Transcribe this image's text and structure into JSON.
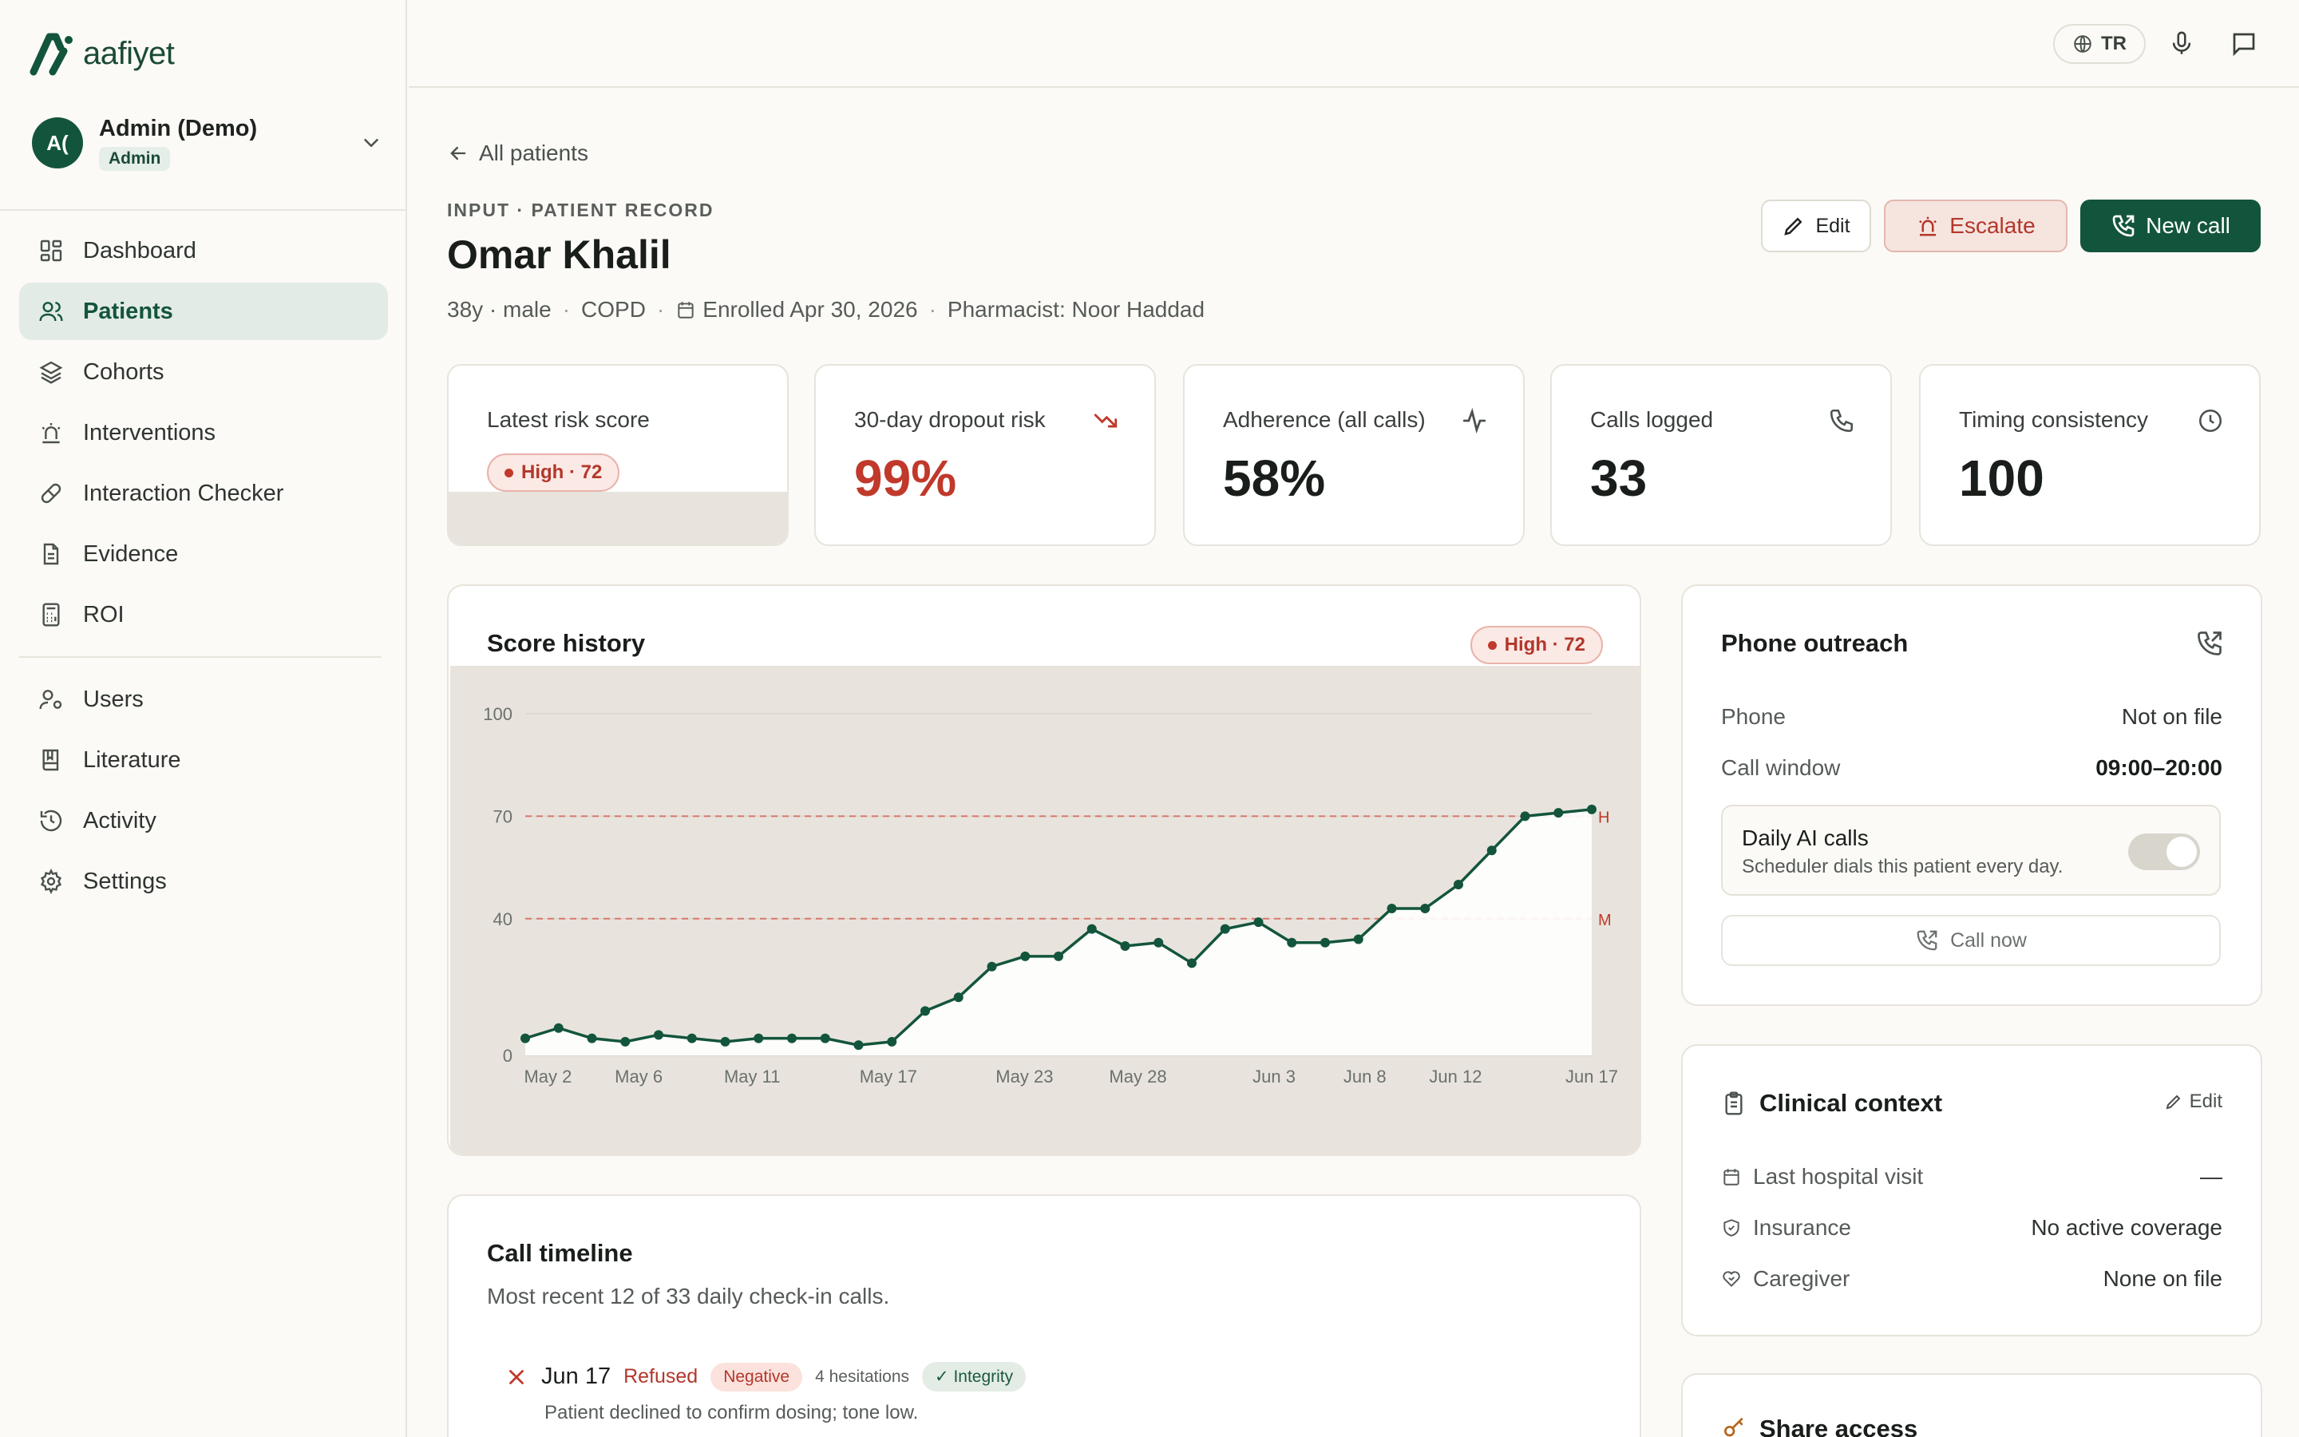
{
  "brand": {
    "name": "aafiyet"
  },
  "user": {
    "initials": "A(",
    "name": "Admin (Demo)",
    "role": "Admin"
  },
  "nav": {
    "primary": [
      {
        "label": "Dashboard",
        "icon": "grid-icon"
      },
      {
        "label": "Patients",
        "icon": "users-icon",
        "active": true
      },
      {
        "label": "Cohorts",
        "icon": "layers-icon"
      },
      {
        "label": "Interventions",
        "icon": "siren-icon"
      },
      {
        "label": "Interaction Checker",
        "icon": "pill-icon"
      },
      {
        "label": "Evidence",
        "icon": "document-icon"
      },
      {
        "label": "ROI",
        "icon": "calculator-icon"
      }
    ],
    "secondary": [
      {
        "label": "Users",
        "icon": "user-cog-icon"
      },
      {
        "label": "Literature",
        "icon": "book-icon"
      },
      {
        "label": "Activity",
        "icon": "history-icon"
      },
      {
        "label": "Settings",
        "icon": "gear-icon"
      }
    ]
  },
  "topbar": {
    "language": "TR"
  },
  "header": {
    "back_label": "All patients",
    "eyebrow": "INPUT · PATIENT RECORD",
    "patient_name": "Omar Khalil",
    "age_sex": "38y · male",
    "condition": "COPD",
    "enrolled": "Enrolled Apr 30, 2026",
    "pharmacist": "Pharmacist: Noor Haddad"
  },
  "actions": {
    "edit": "Edit",
    "escalate": "Escalate",
    "new_call": "New call"
  },
  "stats": {
    "risk": {
      "label": "Latest risk score",
      "badge": "High · 72"
    },
    "dropout": {
      "label": "30-day dropout risk",
      "value": "99%"
    },
    "adherence": {
      "label": "Adherence (all calls)",
      "value": "58%"
    },
    "calls": {
      "label": "Calls logged",
      "value": "33"
    },
    "timing": {
      "label": "Timing consistency",
      "value": "100"
    }
  },
  "score_history": {
    "title": "Score history",
    "badge": "High · 72"
  },
  "chart_data": {
    "type": "line",
    "title": "Score history",
    "ylim": [
      0,
      100
    ],
    "yticks": [
      "0",
      "40",
      "70",
      "100"
    ],
    "xtick_labels": [
      "May 2",
      "May 6",
      "May 11",
      "May 17",
      "May 23",
      "May 28",
      "Jun 3",
      "Jun 8",
      "Jun 12",
      "Jun 17"
    ],
    "xtick_days": [
      2,
      6,
      11,
      17,
      23,
      28,
      34,
      38,
      42,
      48
    ],
    "x_days": [
      1,
      2,
      3,
      4,
      5,
      6,
      7,
      8,
      9,
      10,
      11,
      12,
      13,
      14,
      15,
      16,
      17,
      18,
      19,
      20,
      21,
      22,
      23,
      24,
      25,
      26,
      27,
      28,
      29,
      30,
      31,
      32,
      33,
      34,
      35,
      36,
      37,
      38,
      39,
      40,
      41,
      42,
      43,
      44,
      45,
      46,
      47,
      48
    ],
    "values": [
      5,
      8,
      5,
      4,
      6,
      5,
      4,
      5,
      5,
      5,
      3,
      4,
      13,
      17,
      26,
      29,
      29,
      37,
      32,
      33,
      27,
      37,
      39,
      33,
      33,
      34,
      43,
      43,
      50,
      60,
      70,
      71,
      72
    ],
    "x": [
      1,
      2,
      3,
      4,
      5,
      6,
      7,
      8,
      9,
      10,
      11,
      12,
      13,
      14,
      15,
      16,
      17,
      18,
      19,
      20,
      21,
      22,
      23,
      24,
      25,
      26,
      27,
      28,
      29,
      30,
      31,
      32,
      33
    ],
    "thresholds": [
      {
        "value": 70,
        "label": "H"
      },
      {
        "value": 40,
        "label": "M"
      }
    ],
    "grid": true,
    "legend": "none"
  },
  "phone": {
    "title": "Phone outreach",
    "phone_label": "Phone",
    "phone_value": "Not on file",
    "window_label": "Call window",
    "window_value": "09:00–20:00",
    "daily_title": "Daily AI calls",
    "daily_sub": "Scheduler dials this patient every day.",
    "call_now": "Call now"
  },
  "clinical": {
    "title": "Clinical context",
    "edit": "Edit",
    "hospital_label": "Last hospital visit",
    "hospital_value": "—",
    "insurance_label": "Insurance",
    "insurance_value": "No active coverage",
    "caregiver_label": "Caregiver",
    "caregiver_value": "None on file"
  },
  "share": {
    "title": "Share access"
  },
  "timeline": {
    "title": "Call timeline",
    "subtitle": "Most recent 12 of 33 daily check-in calls.",
    "items": [
      {
        "date": "Jun 17",
        "status": "Refused",
        "sentiment": "Negative",
        "hesitations": "4 hesitations",
        "integrity": "✓ Integrity",
        "note": "Patient declined to confirm dosing; tone low."
      }
    ]
  },
  "colors": {
    "brand": "#13553c",
    "danger": "#c0392b",
    "chart_bg": "#e8e4dd"
  }
}
